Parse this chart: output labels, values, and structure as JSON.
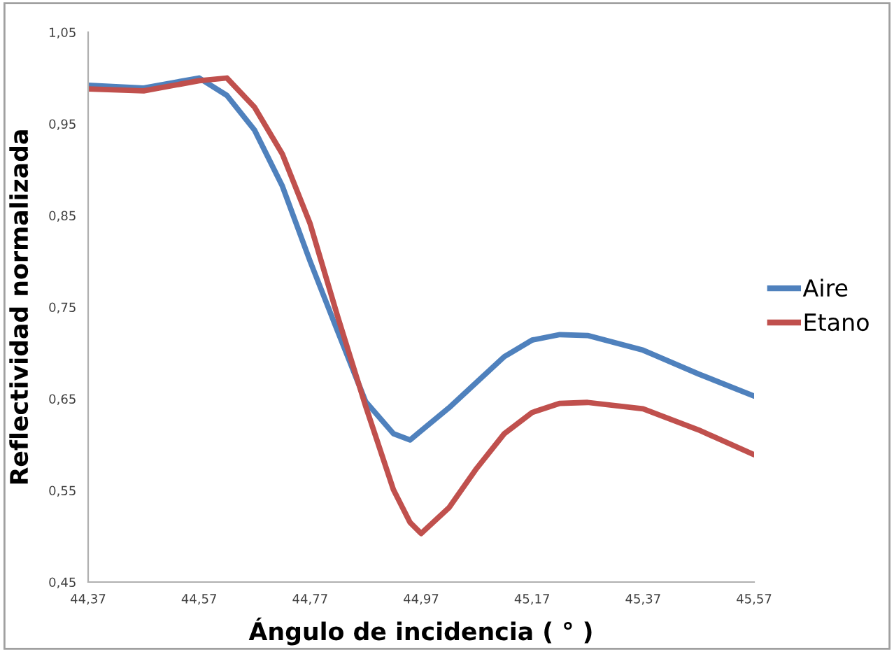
{
  "chart_data": {
    "type": "line",
    "xlabel": "Ángulo de incidencia ( ° )",
    "ylabel": "Reflectividad normalizada",
    "x": [
      44.37,
      44.47,
      44.57,
      44.62,
      44.67,
      44.72,
      44.77,
      44.82,
      44.87,
      44.92,
      44.95,
      44.97,
      45.02,
      45.07,
      45.12,
      45.17,
      45.22,
      45.27,
      45.37,
      45.47,
      45.57
    ],
    "series": [
      {
        "name": "Aire",
        "color": "#4f81bd",
        "values": [
          0.992,
          0.989,
          1.0,
          0.981,
          0.943,
          0.882,
          0.8,
          0.723,
          0.647,
          0.612,
          0.605,
          0.615,
          0.64,
          0.668,
          0.696,
          0.714,
          0.72,
          0.719,
          0.703,
          0.677,
          0.653
        ]
      },
      {
        "name": "Etano",
        "color": "#c0504d",
        "values": [
          0.988,
          0.986,
          0.997,
          1.0,
          0.968,
          0.917,
          0.841,
          0.739,
          0.642,
          0.551,
          0.515,
          0.503,
          0.531,
          0.574,
          0.612,
          0.635,
          0.645,
          0.646,
          0.639,
          0.616,
          0.589
        ]
      }
    ],
    "xlim": [
      44.37,
      45.57
    ],
    "ylim": [
      0.45,
      1.05
    ],
    "xticks": [
      {
        "value": 44.37,
        "label": "44,37"
      },
      {
        "value": 44.57,
        "label": "44,57"
      },
      {
        "value": 44.77,
        "label": "44,77"
      },
      {
        "value": 44.97,
        "label": "44,97"
      },
      {
        "value": 45.17,
        "label": "45,17"
      },
      {
        "value": 45.37,
        "label": "45,37"
      },
      {
        "value": 45.57,
        "label": "45,57"
      }
    ],
    "yticks": [
      {
        "value": 0.45,
        "label": "0,45"
      },
      {
        "value": 0.55,
        "label": "0,55"
      },
      {
        "value": 0.65,
        "label": "0,65"
      },
      {
        "value": 0.75,
        "label": "0,75"
      },
      {
        "value": 0.85,
        "label": "0,85"
      },
      {
        "value": 0.95,
        "label": "0,95"
      },
      {
        "value": 1.05,
        "label": "1,05"
      }
    ],
    "grid": false,
    "legend": "right",
    "line_style": "solid",
    "marker": "none"
  }
}
